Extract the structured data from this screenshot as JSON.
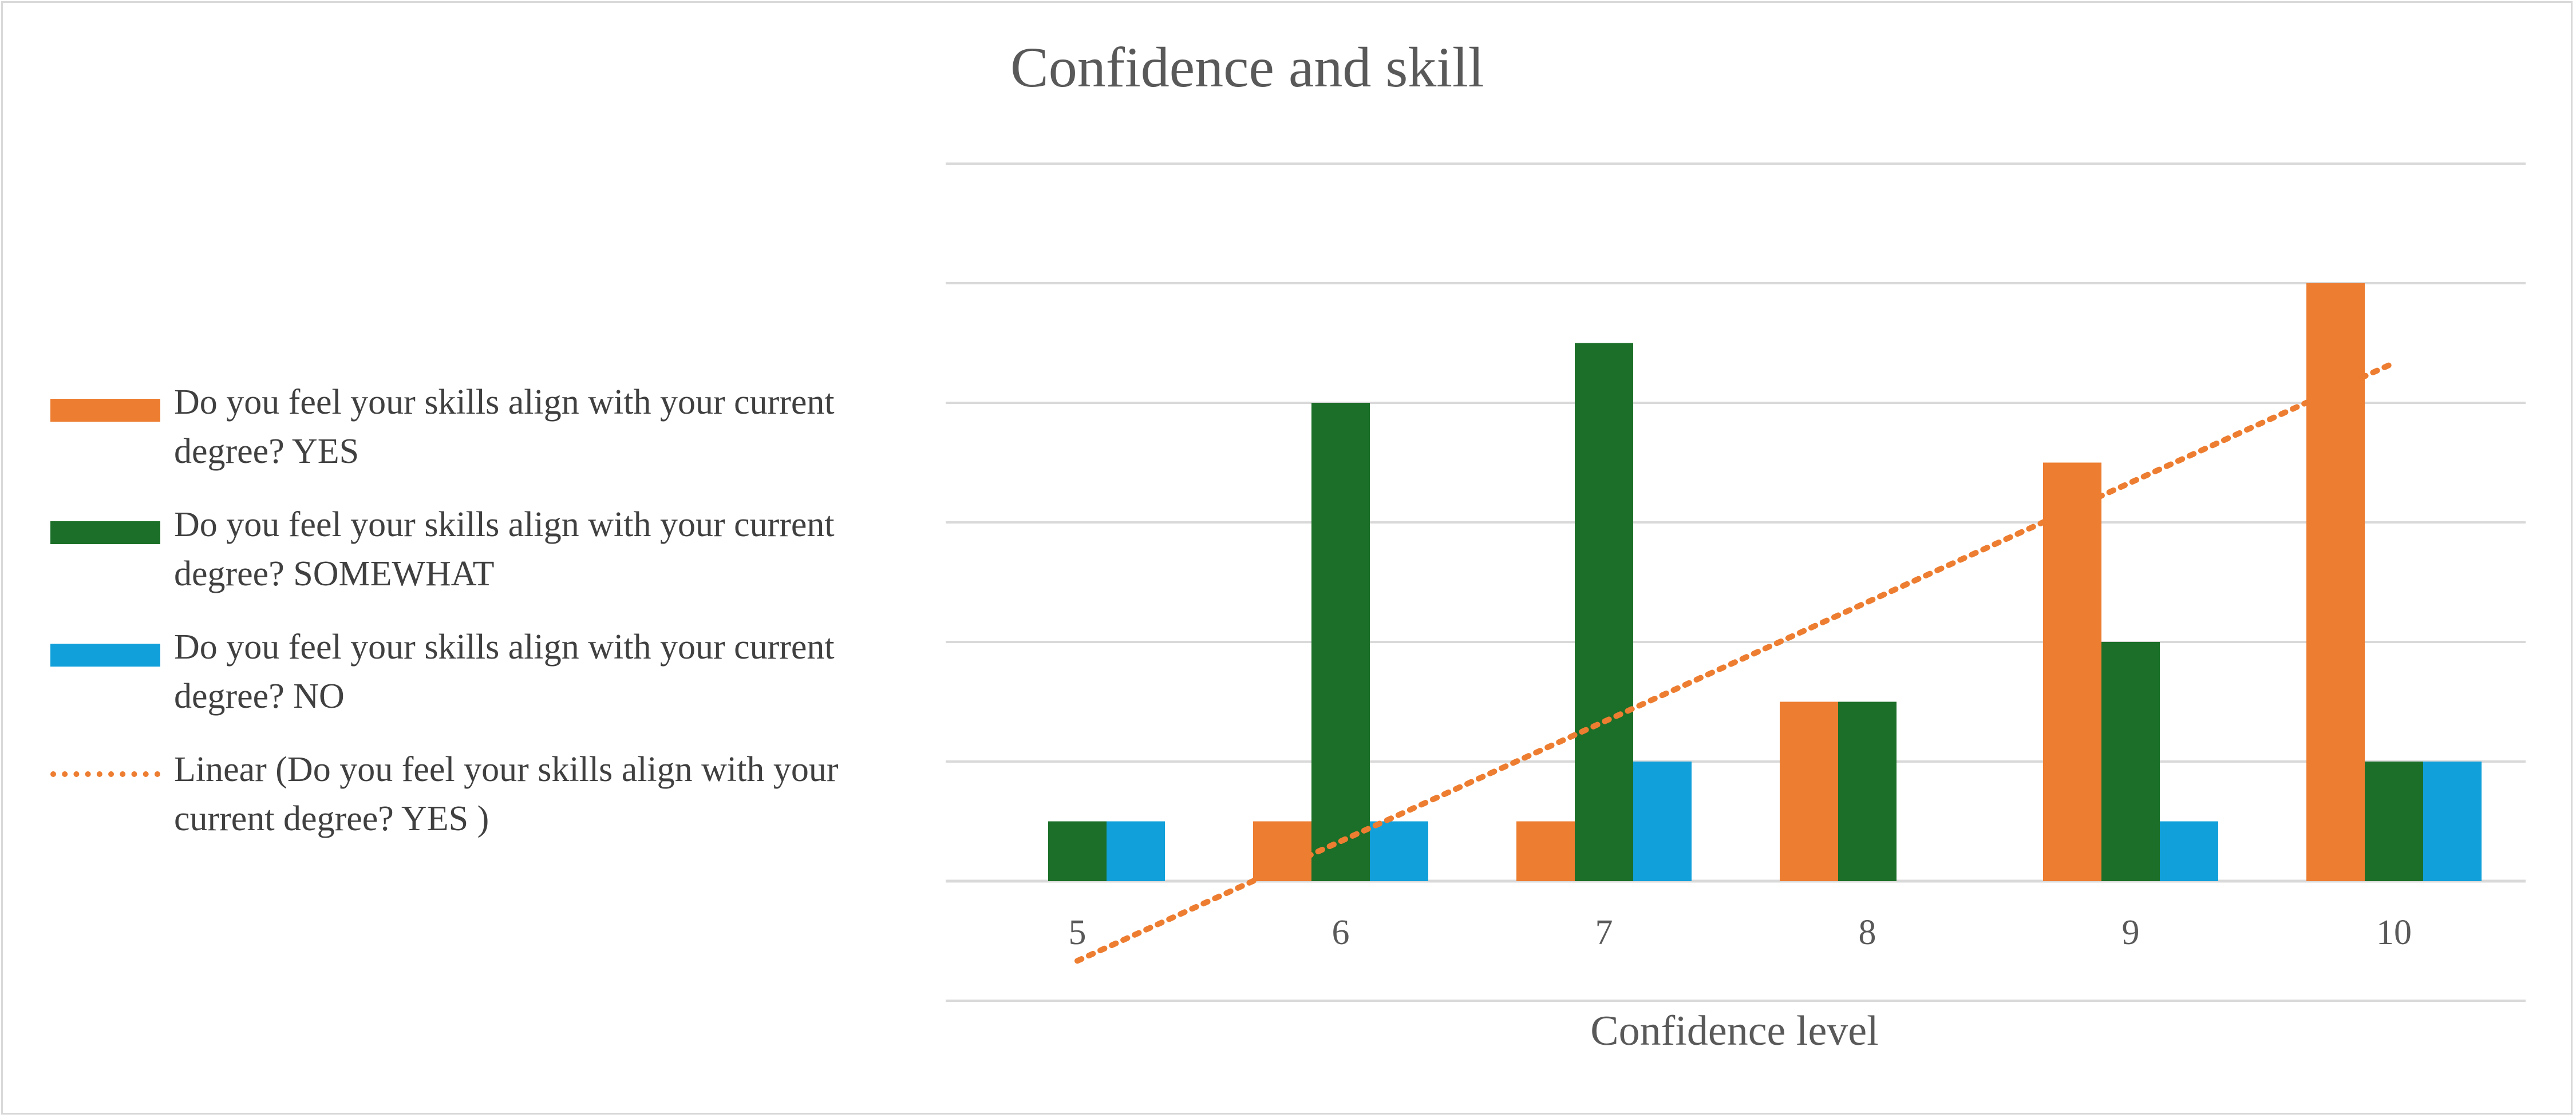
{
  "chart_data": {
    "type": "bar",
    "title": "Confidence and skill",
    "xlabel": "Confidence level",
    "ylabel": "",
    "categories": [
      "5",
      "6",
      "7",
      "8",
      "9",
      "10"
    ],
    "series": [
      {
        "name": "Do you feel your skills align with your current degree? YES",
        "color": "#ed7d31",
        "values": [
          0,
          1,
          1,
          3,
          7,
          10
        ]
      },
      {
        "name": "Do you feel your skills align with your current degree? SOMEWHAT",
        "color": "#1b6f28",
        "values": [
          1,
          8,
          9,
          3,
          4,
          2
        ]
      },
      {
        "name": "Do you feel your skills align with your current degree? NO",
        "color": "#12a0da",
        "values": [
          1,
          1,
          2,
          0,
          1,
          2
        ]
      }
    ],
    "trendline": {
      "name": "Linear (Do you feel your skills align with your current degree? YES )",
      "type": "linear",
      "of_series": "Do you feel your skills align with your current degree? YES",
      "color": "#ed7d31",
      "style": "dotted"
    },
    "ylim": [
      -2,
      12
    ],
    "grid": true,
    "legend_position": "left",
    "y_tick_labels_shown": false
  }
}
